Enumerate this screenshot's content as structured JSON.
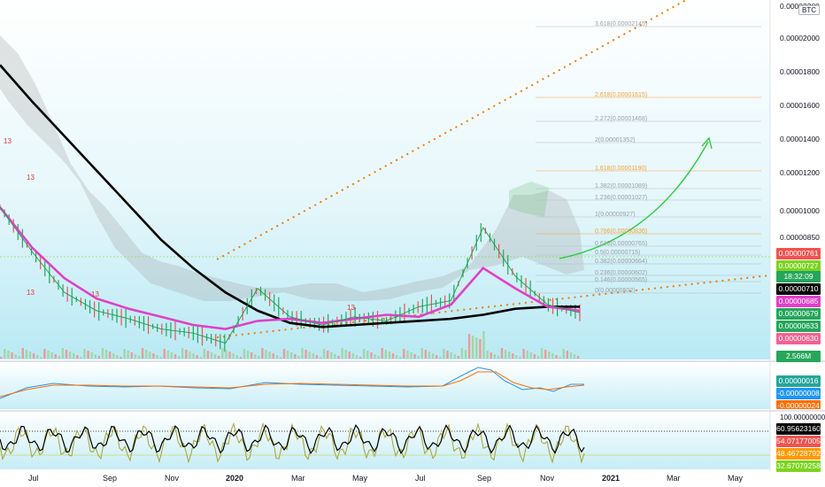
{
  "symbol_tag": "BTC",
  "price_axis": [
    "0.00002200",
    "0.00002000",
    "0.00001800",
    "0.00001600",
    "0.00001400",
    "0.00001200",
    "0.00001000",
    "0.00000850"
  ],
  "time_axis": [
    "Jul",
    "Sep",
    "Nov",
    "2020",
    "Mar",
    "May",
    "Jul",
    "Sep",
    "Nov",
    "2021",
    "Mar",
    "May"
  ],
  "fib_levels": [
    {
      "label": "3.618(0.00002145)",
      "color": "#9aa0a6"
    },
    {
      "label": "2.618(0.00001615)",
      "color": "#f2a33a"
    },
    {
      "label": "2.272(0.00001468)",
      "color": "#9aa0a6"
    },
    {
      "label": "2(0.00001352)",
      "color": "#9aa0a6"
    },
    {
      "label": "1.618(0.00001190)",
      "color": "#f2a33a"
    },
    {
      "label": "1.382(0.00001089)",
      "color": "#9aa0a6"
    },
    {
      "label": "1.236(0.00001027)",
      "color": "#9aa0a6"
    },
    {
      "label": "1(0.00000927)",
      "color": "#9aa0a6"
    },
    {
      "label": "0.786(0.00000836)",
      "color": "#f2a33a"
    },
    {
      "label": "0.618(0.00000765)",
      "color": "#9aa0a6"
    },
    {
      "label": "0.5(0.00000715)",
      "color": "#9aa0a6"
    },
    {
      "label": "0.382(0.00000664)",
      "color": "#9aa0a6"
    },
    {
      "label": "0.236(0.00000602)",
      "color": "#9aa0a6"
    },
    {
      "label": "0.146(0.00000565)",
      "color": "#9aa0a6"
    },
    {
      "label": "0(0.00000502)",
      "color": "#9aa0a6"
    }
  ],
  "badges": [
    {
      "text": "0.00000761",
      "color": "#ef5350"
    },
    {
      "text": "0.00000727",
      "color": "#7cd320"
    },
    {
      "text": "18:32:09",
      "color": "#26a65b"
    },
    {
      "text": "0.00000710",
      "color": "#000000"
    },
    {
      "text": "0.00000685",
      "color": "#e040c8"
    },
    {
      "text": "0.00000679",
      "color": "#26a65b"
    },
    {
      "text": "0.00000633",
      "color": "#26a65b"
    },
    {
      "text": "0.00000630",
      "color": "#f06292"
    }
  ],
  "volume_badge": {
    "text": "2.566M",
    "color": "#26a65b"
  },
  "macd_badges": [
    {
      "text": "0.00000016",
      "color": "#26a69a"
    },
    {
      "text": "-0.00000008",
      "color": "#2196f3"
    },
    {
      "text": "-0.00000024",
      "color": "#ff6d00"
    }
  ],
  "osc_axis_top": "100.00000000",
  "osc_badges": [
    {
      "text": "60.95623160",
      "color": "#000000"
    },
    {
      "text": "54.07177005",
      "color": "#ef5350"
    },
    {
      "text": "48.46728792",
      "color": "#ff9800"
    },
    {
      "text": "32.67079258",
      "color": "#7cd320"
    }
  ],
  "candle_labels": [
    "13",
    "13",
    "13",
    "13",
    "13"
  ],
  "chart_data": {
    "type": "line",
    "ylim": [
      4.5e-06,
      2.22e-05
    ],
    "series": [
      {
        "values": [
          1.9e-05,
          1.72e-05,
          1.55e-05,
          1.38e-05,
          1.21e-05,
          1.04e-05,
          9e-06,
          7.8e-06,
          6.9e-06,
          6.3e-06,
          6.1e-06,
          6.2e-06,
          6.3e-06,
          6.4e-06,
          6.5e-06,
          6.7e-06,
          7e-06,
          7.1e-06,
          7.1e-06
        ]
      },
      {
        "values": [
          1.2e-05,
          1e-05,
          8.5e-06,
          7.5e-06,
          7e-06,
          6.6e-06,
          6.2e-06,
          6e-06,
          6.4e-06,
          6.5e-06,
          6.3e-06,
          6.5e-06,
          6.7e-06,
          6.6e-06,
          7.2e-06,
          9e-06,
          8e-06,
          7.1e-06,
          6.9e-06
        ]
      },
      {
        "values": [
          1.2e-05,
          9.8e-06,
          7.8e-06,
          6.9e-06,
          6.5e-06,
          6e-06,
          5.8e-06,
          5.3e-06,
          8e-06,
          6.6e-06,
          6.2e-06,
          6.6e-06,
          6.4e-06,
          7.1e-06,
          7.4e-06,
          1.1e-05,
          8.6e-06,
          7.2e-06,
          6.8e-06
        ]
      }
    ]
  }
}
